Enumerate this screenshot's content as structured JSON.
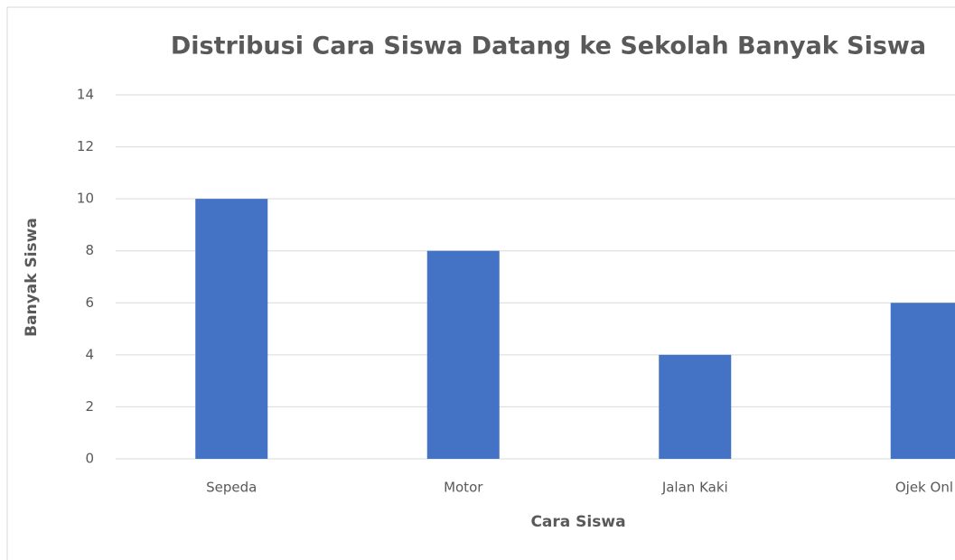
{
  "chart_data": {
    "type": "bar",
    "title": "Distribusi Cara Siswa Datang ke Sekolah Banyak Siswa",
    "x_label": "Cara Siswa",
    "y_label": "Banyak Siswa",
    "categories": [
      "Sepeda",
      "Motor",
      "Jalan Kaki",
      "Ojek Onl"
    ],
    "values": [
      10,
      8,
      4,
      6
    ],
    "color": "#4472c4",
    "ylim": [
      0,
      14
    ],
    "yticks": [
      0,
      2,
      4,
      6,
      8,
      10,
      12,
      14
    ],
    "grid": true
  }
}
